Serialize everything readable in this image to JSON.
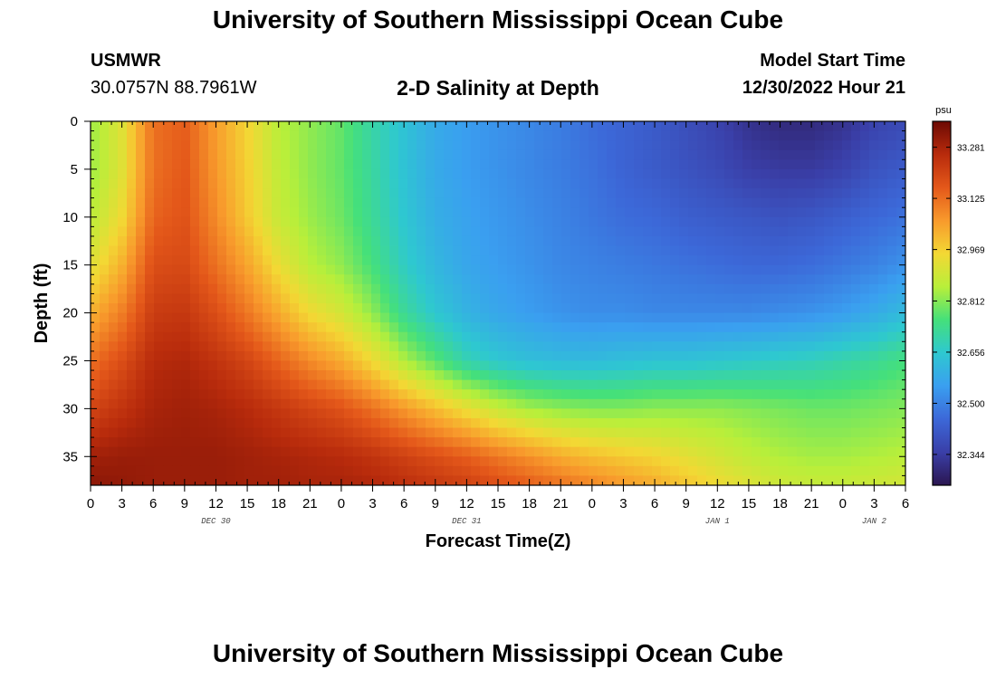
{
  "header": {
    "title": "University of Southern Mississippi Ocean Cube",
    "station_id": "USMWR",
    "coords": "30.0757N  88.7961W",
    "plot_title": "2-D Salinity at Depth",
    "model_start_label": "Model Start Time",
    "model_start_value": "12/30/2022 Hour 21"
  },
  "footer": {
    "title": "University of Southern Mississippi Ocean Cube"
  },
  "chart_data": {
    "type": "heatmap",
    "title": "2-D Salinity at Depth",
    "xlabel": "Forecast Time(Z)",
    "ylabel": "Depth (ft)",
    "x_ticks": [
      "0",
      "3",
      "6",
      "9",
      "12",
      "15",
      "18",
      "21",
      "0",
      "3",
      "6",
      "9",
      "12",
      "15",
      "18",
      "21",
      "0",
      "3",
      "6",
      "9",
      "12",
      "15",
      "18",
      "21",
      "0",
      "3",
      "6"
    ],
    "day_labels": [
      {
        "label": "DEC 30",
        "hour": 12
      },
      {
        "label": "DEC 31",
        "hour": 36
      },
      {
        "label": "JAN 1",
        "hour": 60
      },
      {
        "label": "JAN 2",
        "hour": 75
      }
    ],
    "x_range_hours": [
      0,
      78
    ],
    "y_ticks": [
      0,
      5,
      10,
      15,
      20,
      25,
      30,
      35
    ],
    "y_range_ft": [
      0,
      38
    ],
    "colorbar": {
      "unit": "psu",
      "ticks": [
        "33.281",
        "33.125",
        "32.969",
        "32.812",
        "32.656",
        "32.500",
        "32.344"
      ],
      "range": [
        32.25,
        33.36
      ],
      "colors": [
        "#2b1650",
        "#3a3fa8",
        "#3c68d8",
        "#3a9ff0",
        "#2ec8d0",
        "#45e07a",
        "#b8ef3a",
        "#f3d834",
        "#f89a2c",
        "#e4581a",
        "#b82b0c",
        "#6d0a04"
      ]
    },
    "salinity_grid": {
      "hours": [
        0,
        3,
        6,
        9,
        12,
        15,
        18,
        21,
        24,
        27,
        30,
        33,
        36,
        39,
        42,
        45,
        48,
        51,
        54,
        57,
        60,
        63,
        66,
        69,
        72,
        75,
        78
      ],
      "depths_ft": [
        0,
        5,
        10,
        15,
        20,
        25,
        30,
        35,
        38
      ],
      "rows": [
        [
          32.83,
          32.92,
          33.12,
          33.15,
          33.05,
          32.96,
          32.86,
          32.82,
          32.78,
          32.7,
          32.64,
          32.58,
          32.55,
          32.53,
          32.51,
          32.49,
          32.46,
          32.44,
          32.42,
          32.39,
          32.36,
          32.32,
          32.3,
          32.3,
          32.32,
          32.36,
          32.38
        ],
        [
          32.83,
          32.92,
          33.12,
          33.16,
          33.06,
          32.97,
          32.87,
          32.82,
          32.78,
          32.71,
          32.64,
          32.58,
          32.55,
          32.53,
          32.51,
          32.49,
          32.47,
          32.44,
          32.42,
          32.4,
          32.38,
          32.35,
          32.34,
          32.34,
          32.36,
          32.4,
          32.42
        ],
        [
          32.86,
          32.95,
          33.14,
          33.17,
          33.08,
          32.98,
          32.88,
          32.83,
          32.79,
          32.72,
          32.65,
          32.59,
          32.56,
          32.54,
          32.52,
          32.5,
          32.48,
          32.46,
          32.45,
          32.43,
          32.42,
          32.41,
          32.4,
          32.41,
          32.43,
          32.45,
          32.47
        ],
        [
          32.92,
          33.02,
          33.18,
          33.19,
          33.12,
          33.04,
          32.94,
          32.86,
          32.82,
          32.75,
          32.67,
          32.61,
          32.57,
          32.55,
          32.53,
          32.51,
          32.5,
          32.49,
          32.48,
          32.47,
          32.46,
          32.45,
          32.45,
          32.46,
          32.48,
          32.5,
          32.53
        ],
        [
          33.02,
          33.1,
          33.22,
          33.23,
          33.18,
          33.11,
          33.03,
          32.95,
          32.9,
          32.82,
          32.72,
          32.65,
          32.6,
          32.57,
          32.55,
          32.53,
          32.52,
          32.52,
          32.51,
          32.51,
          32.51,
          32.51,
          32.52,
          32.53,
          32.55,
          32.58,
          32.62
        ],
        [
          33.12,
          33.18,
          33.26,
          33.27,
          33.24,
          33.2,
          33.14,
          33.08,
          33.03,
          32.95,
          32.85,
          32.77,
          32.69,
          32.65,
          32.63,
          32.62,
          32.62,
          32.63,
          32.64,
          32.64,
          32.65,
          32.66,
          32.67,
          32.68,
          32.7,
          32.72,
          32.75
        ],
        [
          33.2,
          33.24,
          33.28,
          33.29,
          33.28,
          33.26,
          33.23,
          33.2,
          33.17,
          33.12,
          33.06,
          33.0,
          32.94,
          32.88,
          32.84,
          32.82,
          32.81,
          32.81,
          32.82,
          32.82,
          32.82,
          32.81,
          32.8,
          32.79,
          32.79,
          32.8,
          32.81
        ],
        [
          33.29,
          33.3,
          33.3,
          33.3,
          33.3,
          33.29,
          33.28,
          33.27,
          33.26,
          33.24,
          33.21,
          33.18,
          33.15,
          33.11,
          33.07,
          33.03,
          33.0,
          32.98,
          32.96,
          32.93,
          32.9,
          32.87,
          32.85,
          32.84,
          32.84,
          32.85,
          32.86
        ],
        [
          33.32,
          33.31,
          33.3,
          33.3,
          33.3,
          33.29,
          33.29,
          33.28,
          33.28,
          33.27,
          33.25,
          33.23,
          33.21,
          33.18,
          33.15,
          33.12,
          33.09,
          33.06,
          33.03,
          32.99,
          32.95,
          32.92,
          32.89,
          32.88,
          32.88,
          32.89,
          32.9
        ]
      ]
    }
  }
}
